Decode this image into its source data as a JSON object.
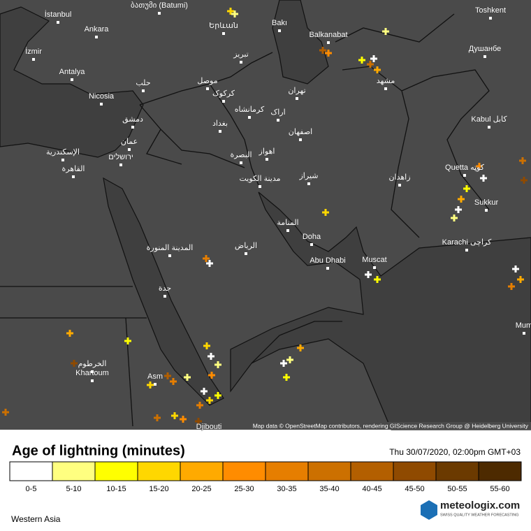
{
  "map": {
    "cities": [
      "İstanbul",
      "Ankara",
      "İzmir",
      "Antalya",
      "Nicosia",
      "ბათუმი (Batumi)",
      "Երևան",
      "Bakı",
      "Balkanabat",
      "Toshkent",
      "Душанбе",
      "تبریز",
      "حلب",
      "موصل",
      "کرکوک",
      "تهران",
      "مشهد",
      "کرمانشاه",
      "اراک",
      "بغداد",
      "دمشق",
      "عمان",
      "ירושלים",
      "الإسكندرية",
      "القاهرة",
      "اصفهان",
      "اهواز",
      "البصرة",
      "مدينة الكويت",
      "شیراز",
      "زاهدان",
      "Kabul کابل",
      "Quetta کوټه",
      "Sukkur",
      "Karachi کراچی",
      "المنامة",
      "Doha",
      "Abu Dhabi",
      "Muscat",
      "الرياض",
      "المدينة المنورة",
      "جدة",
      "الخرطوم",
      "Khartoum",
      "Asm",
      "Djibouti",
      "Mum"
    ],
    "attribution": "Map data © OpenStreetMap contributors, rendering GIScience Research Group @ Heidelberg University",
    "region": "Western Asia"
  },
  "legend": {
    "title": "Age of lightning (minutes)",
    "timestamp": "Thu 30/07/2020, 02:00pm GMT+03",
    "items": [
      {
        "label": "0-5",
        "color": "#ffffff"
      },
      {
        "label": "5-10",
        "color": "#ffff80"
      },
      {
        "label": "10-15",
        "color": "#ffff00"
      },
      {
        "label": "15-20",
        "color": "#ffd700"
      },
      {
        "label": "20-25",
        "color": "#ffaa00"
      },
      {
        "label": "25-30",
        "color": "#ff8c00"
      },
      {
        "label": "30-35",
        "color": "#e67e00"
      },
      {
        "label": "35-40",
        "color": "#cc7000"
      },
      {
        "label": "40-45",
        "color": "#b35f00"
      },
      {
        "label": "45-50",
        "color": "#8f4a00"
      },
      {
        "label": "50-55",
        "color": "#6b3a00"
      },
      {
        "label": "55-60",
        "color": "#4d2a00"
      }
    ]
  },
  "brand": {
    "name": "meteologix.com",
    "tagline": "SWISS QUALITY WEATHER FORECASTING"
  }
}
